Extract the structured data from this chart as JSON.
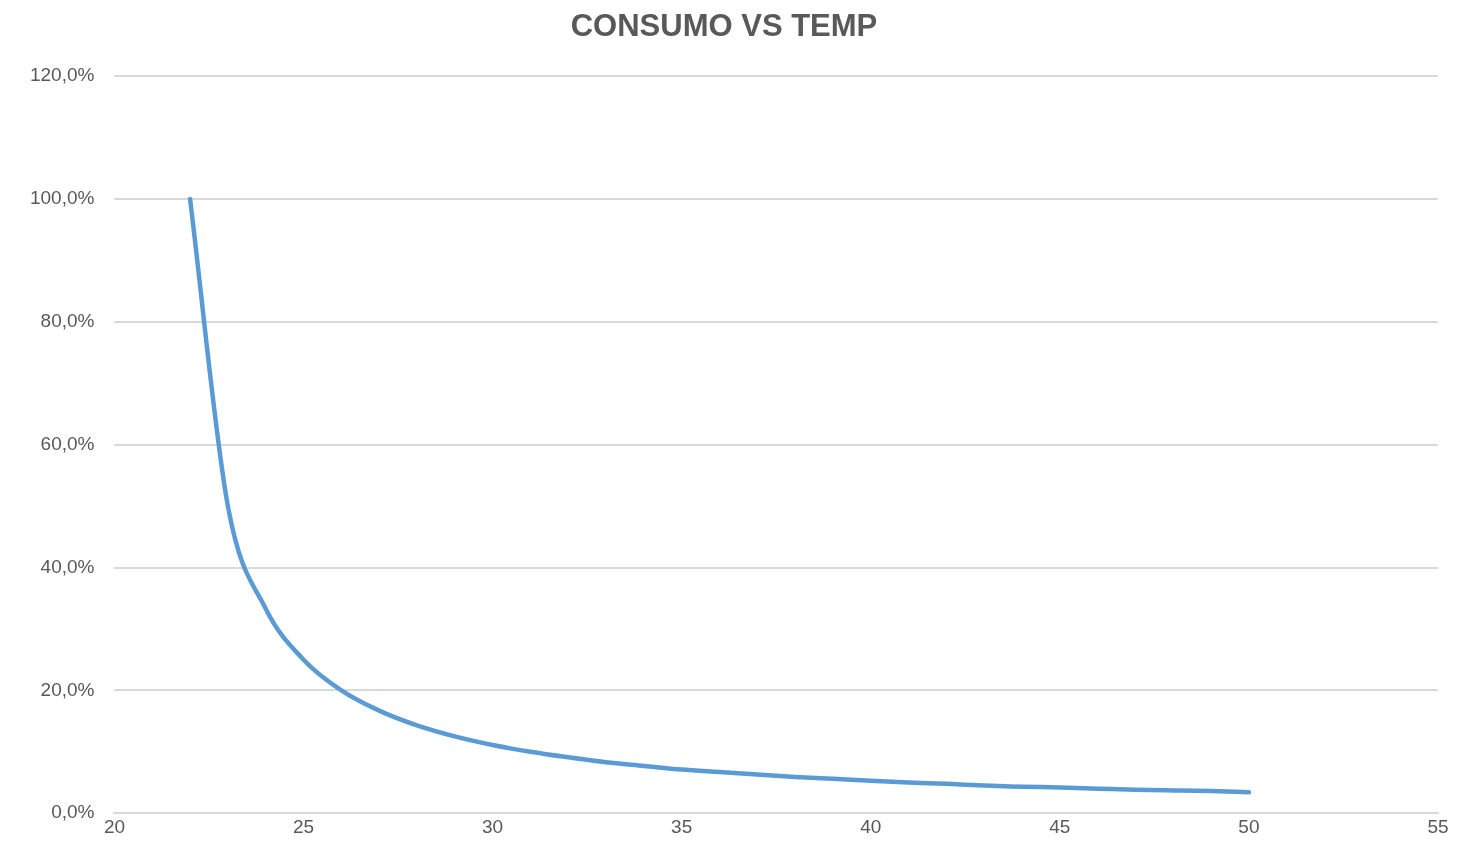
{
  "chart_data": {
    "type": "line",
    "title": "CONSUMO VS TEMP",
    "x": [
      22,
      23,
      24,
      25,
      26,
      27,
      28,
      29,
      30,
      31,
      32,
      33,
      34,
      35,
      36,
      37,
      38,
      39,
      40,
      41,
      42,
      43,
      44,
      45,
      46,
      47,
      48,
      49,
      50
    ],
    "series": [
      {
        "color": "#5b9bd5",
        "values": [
          100,
          50,
          33.3,
          25,
          20,
          16.7,
          14.3,
          12.5,
          11.1,
          10,
          9.1,
          8.3,
          7.7,
          7.1,
          6.7,
          6.3,
          5.9,
          5.6,
          5.3,
          5,
          4.8,
          4.5,
          4.3,
          4.2,
          4,
          3.8,
          3.7,
          3.6,
          3.4
        ]
      }
    ],
    "xlim": [
      20,
      55
    ],
    "xticks": [
      20,
      25,
      30,
      35,
      40,
      45,
      50,
      55
    ],
    "ylim": [
      0,
      120
    ],
    "yticks": [
      {
        "value": 0,
        "label": "0,0%"
      },
      {
        "value": 20,
        "label": "20,0%"
      },
      {
        "value": 40,
        "label": "40,0%"
      },
      {
        "value": 60,
        "label": "60,0%"
      },
      {
        "value": 80,
        "label": "80,0%"
      },
      {
        "value": 100,
        "label": "100,0%"
      },
      {
        "value": 120,
        "label": "120,0%"
      }
    ],
    "grid": "y",
    "legend": false,
    "marker": "none",
    "line_style": "solid"
  }
}
